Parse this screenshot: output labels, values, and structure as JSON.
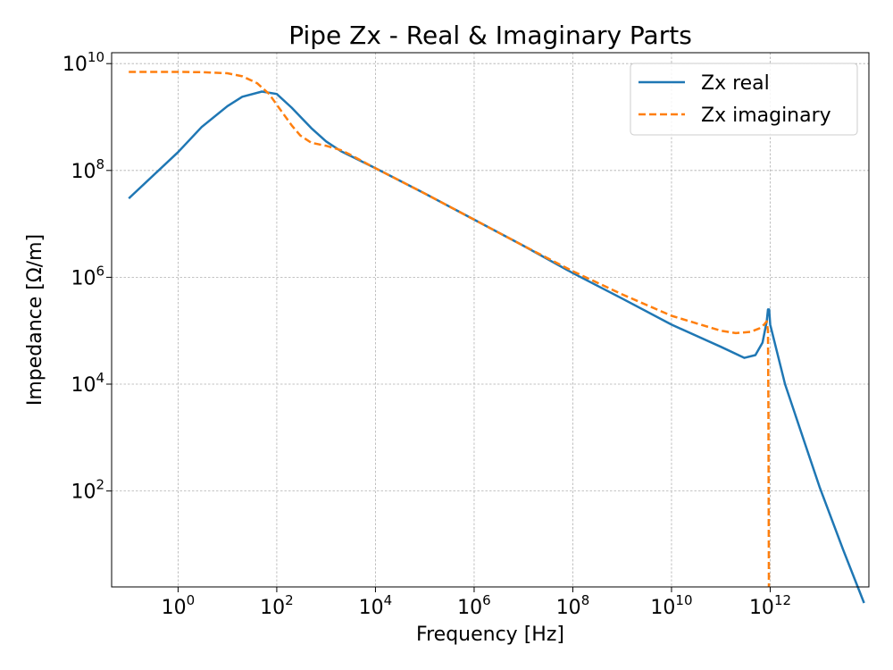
{
  "chart_data": {
    "type": "line",
    "title": "Pipe Zx - Real & Imaginary Parts",
    "xlabel": "Frequency [Hz]",
    "ylabel": "Impedance [Ω/m]",
    "xscale": "log",
    "yscale": "log",
    "xlim": [
      0.045,
      100000000000000.0
    ],
    "ylim": [
      1.6,
      16000000000.0
    ],
    "grid": true,
    "legend_position": "top-right",
    "x_ticks": [
      {
        "base": "10",
        "exp": "0",
        "value": 1
      },
      {
        "base": "10",
        "exp": "2",
        "value": 100
      },
      {
        "base": "10",
        "exp": "4",
        "value": 10000
      },
      {
        "base": "10",
        "exp": "6",
        "value": 1000000
      },
      {
        "base": "10",
        "exp": "8",
        "value": 100000000
      },
      {
        "base": "10",
        "exp": "10",
        "value": 10000000000
      },
      {
        "base": "10",
        "exp": "12",
        "value": 1000000000000
      }
    ],
    "y_ticks": [
      {
        "base": "10",
        "exp": "2",
        "value": 100
      },
      {
        "base": "10",
        "exp": "4",
        "value": 10000
      },
      {
        "base": "10",
        "exp": "6",
        "value": 1000000
      },
      {
        "base": "10",
        "exp": "8",
        "value": 100000000
      },
      {
        "base": "10",
        "exp": "10",
        "value": 10000000000
      }
    ],
    "series": [
      {
        "name": "Zx real",
        "color": "#1f77b4",
        "style": "solid",
        "x": [
          0.1,
          1,
          3,
          10,
          20,
          50,
          100,
          200,
          500,
          1000,
          2000,
          10000,
          100000,
          1000000,
          10000000,
          100000000,
          1000000000,
          10000000000,
          100000000000,
          300000000000,
          500000000000,
          700000000000,
          850000000000,
          900000000000,
          950000000000,
          1000000000000,
          2000000000000,
          5000000000000,
          10000000000000,
          30000000000000,
          80000000000000
        ],
        "y": [
          30000000,
          220000000,
          650000000,
          1600000000,
          2400000000,
          3000000000,
          2700000000,
          1500000000,
          620000000,
          350000000,
          230000000,
          110000000,
          37000000,
          12000000,
          3900000,
          1200000,
          400000,
          130000,
          50000,
          31000,
          35000,
          60000,
          150000,
          250000,
          250000,
          130000,
          10000,
          800,
          120,
          8,
          0.8
        ]
      },
      {
        "name": "Zx imaginary",
        "color": "#ff7f0e",
        "style": "dashed",
        "x": [
          0.1,
          1,
          3,
          10,
          20,
          40,
          70,
          100,
          200,
          300,
          500,
          1000,
          2000,
          3000,
          10000,
          100000,
          1000000,
          10000000,
          100000000,
          1000000000,
          10000000000,
          100000000000,
          200000000000,
          400000000000,
          600000000000,
          750000000000,
          850000000000,
          900000000000,
          920000000000,
          940000000000
        ],
        "y": [
          7000000000,
          7000000000,
          6900000000,
          6600000000,
          5800000000,
          4300000000,
          2700000000,
          1700000000,
          700000000,
          450000000,
          330000000,
          290000000,
          240000000,
          200000000,
          110000000,
          37000000,
          12000000,
          3900000,
          1300000,
          480000,
          190000,
          100000,
          90000,
          95000,
          110000,
          130000,
          150000,
          100000,
          3000,
          1.6
        ]
      }
    ]
  }
}
